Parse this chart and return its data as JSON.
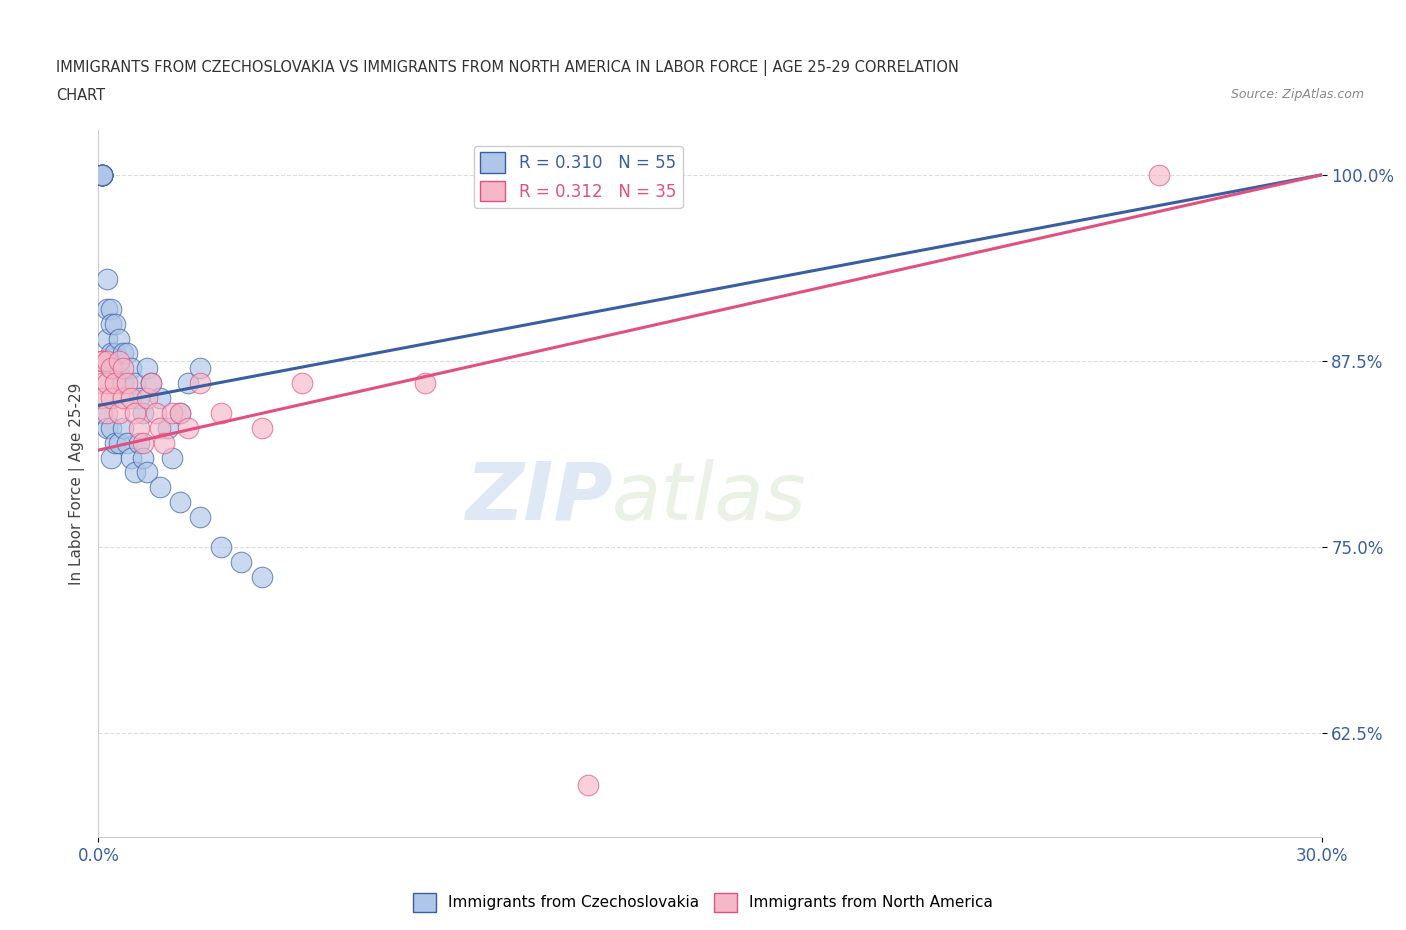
{
  "title_line1": "IMMIGRANTS FROM CZECHOSLOVAKIA VS IMMIGRANTS FROM NORTH AMERICA IN LABOR FORCE | AGE 25-29 CORRELATION",
  "title_line2": "CHART",
  "source": "Source: ZipAtlas.com",
  "xlabel": "Immigrants from Czechoslovakia",
  "ylabel": "In Labor Force | Age 25-29",
  "xlim": [
    0.0,
    0.3
  ],
  "ylim": [
    0.555,
    1.03
  ],
  "yticks": [
    0.625,
    0.75,
    0.875,
    1.0
  ],
  "ytick_labels": [
    "62.5%",
    "75.0%",
    "87.5%",
    "100.0%"
  ],
  "xticks": [
    0.0,
    0.3
  ],
  "xtick_labels": [
    "0.0%",
    "30.0%"
  ],
  "r_blue": 0.31,
  "n_blue": 55,
  "r_pink": 0.312,
  "n_pink": 35,
  "color_blue": "#aec6e8",
  "color_pink": "#f4b8c8",
  "line_blue": "#3a5fa0",
  "line_pink": "#e05080",
  "blue_x": [
    0.001,
    0.001,
    0.001,
    0.001,
    0.001,
    0.001,
    0.001,
    0.001,
    0.001,
    0.001,
    0.002,
    0.002,
    0.002,
    0.003,
    0.003,
    0.003,
    0.003,
    0.004,
    0.004,
    0.005,
    0.005,
    0.006,
    0.006,
    0.007,
    0.008,
    0.009,
    0.01,
    0.011,
    0.012,
    0.013,
    0.015,
    0.017,
    0.02,
    0.022,
    0.025,
    0.001,
    0.002,
    0.003,
    0.003,
    0.004,
    0.005,
    0.006,
    0.007,
    0.008,
    0.009,
    0.01,
    0.011,
    0.012,
    0.015,
    0.018,
    0.02,
    0.025,
    0.03,
    0.035,
    0.04
  ],
  "blue_y": [
    1.0,
    1.0,
    1.0,
    1.0,
    1.0,
    1.0,
    1.0,
    1.0,
    1.0,
    1.0,
    0.93,
    0.91,
    0.89,
    0.91,
    0.9,
    0.88,
    0.87,
    0.9,
    0.88,
    0.89,
    0.87,
    0.88,
    0.86,
    0.88,
    0.87,
    0.86,
    0.85,
    0.84,
    0.87,
    0.86,
    0.85,
    0.83,
    0.84,
    0.86,
    0.87,
    0.84,
    0.83,
    0.83,
    0.81,
    0.82,
    0.82,
    0.83,
    0.82,
    0.81,
    0.8,
    0.82,
    0.81,
    0.8,
    0.79,
    0.81,
    0.78,
    0.77,
    0.75,
    0.74,
    0.73
  ],
  "pink_x": [
    0.001,
    0.001,
    0.001,
    0.001,
    0.001,
    0.002,
    0.002,
    0.002,
    0.003,
    0.003,
    0.004,
    0.005,
    0.005,
    0.006,
    0.006,
    0.007,
    0.008,
    0.009,
    0.01,
    0.011,
    0.012,
    0.013,
    0.014,
    0.015,
    0.016,
    0.018,
    0.02,
    0.022,
    0.025,
    0.03,
    0.04,
    0.05,
    0.08,
    0.12,
    0.26
  ],
  "pink_y": [
    0.875,
    0.875,
    0.875,
    0.86,
    0.85,
    0.875,
    0.86,
    0.84,
    0.87,
    0.85,
    0.86,
    0.875,
    0.84,
    0.87,
    0.85,
    0.86,
    0.85,
    0.84,
    0.83,
    0.82,
    0.85,
    0.86,
    0.84,
    0.83,
    0.82,
    0.84,
    0.84,
    0.83,
    0.86,
    0.84,
    0.83,
    0.86,
    0.86,
    0.59,
    1.0
  ],
  "watermark_zip": "ZIP",
  "watermark_atlas": "atlas",
  "background_color": "#ffffff",
  "grid_color": "#dddddd"
}
